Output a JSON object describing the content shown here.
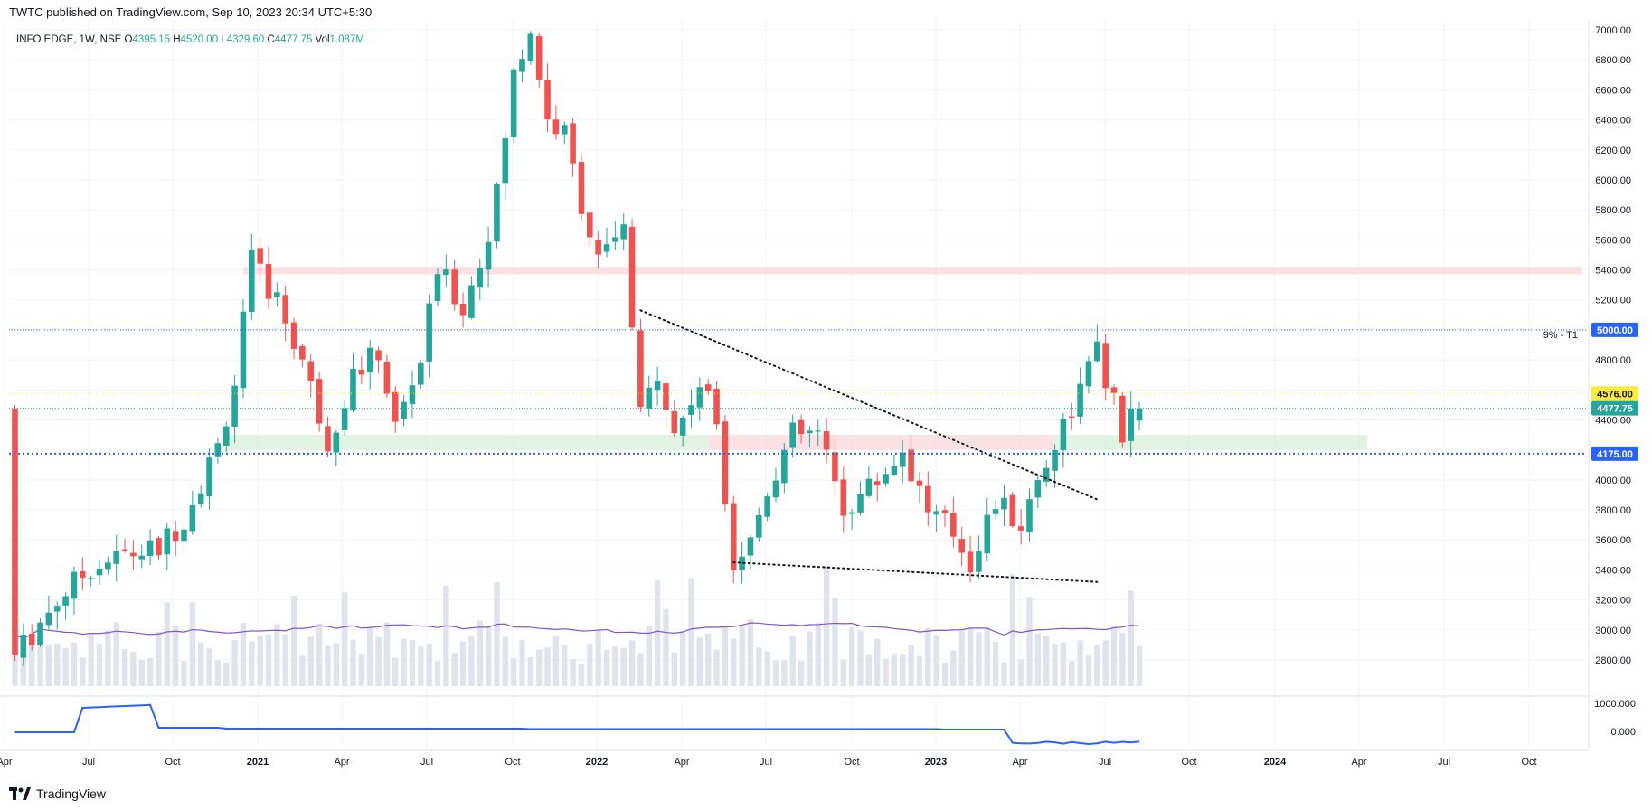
{
  "header": {
    "published": "TWTC published on TradingView.com, Sep 10, 2023 20:34 UTC+5:30"
  },
  "legend": {
    "symbol": "INFO EDGE, 1W, NSE",
    "o_label": "O",
    "o": "4395.15",
    "h_label": "H",
    "h": "4520.00",
    "l_label": "L",
    "l": "4329.60",
    "c_label": "C",
    "c": "4477.75",
    "v_label": "Vol",
    "v": "1.087M"
  },
  "brand": {
    "name": "TradingView"
  },
  "colors": {
    "up": "#26a69a",
    "down": "#ef5350",
    "volume": "#e0e3eb",
    "volume_ma": "#7e57c2",
    "indicator": "#2962ff",
    "grid": "#f0f3fa",
    "axis_text": "#131722"
  },
  "chart_data": {
    "type": "candlestick",
    "interval": "1W",
    "ylim": [
      2750,
      7000
    ],
    "y_ticks": [
      "7000.00",
      "6800.00",
      "6600.00",
      "6400.00",
      "6200.00",
      "6000.00",
      "5800.00",
      "5600.00",
      "5400.00",
      "5200.00",
      "5000.00",
      "4800.00",
      "4600.00",
      "4400.00",
      "4200.00",
      "4000.00",
      "3800.00",
      "3600.00",
      "3400.00",
      "3200.00",
      "3000.00",
      "2800.00"
    ],
    "x_ticks": [
      "Apr",
      "Jul",
      "Oct",
      "2021",
      "Apr",
      "Jul",
      "Oct",
      "2022",
      "Apr",
      "Jul",
      "Oct",
      "2023",
      "Apr",
      "Jul",
      "Oct",
      "2024",
      "Apr",
      "Jul",
      "Oct"
    ],
    "price_labels": [
      {
        "text": "5000.00",
        "value": 5000,
        "color": "#2962ff"
      },
      {
        "text": "4576.00",
        "value": 4576,
        "color": "#ffeb3b"
      },
      {
        "text": "4477.75",
        "value": 4477.75,
        "color": "#26a69a"
      },
      {
        "text": "4175.00",
        "value": 4175,
        "color": "#2962ff"
      }
    ],
    "annotations": [
      {
        "text": "9% - T1",
        "value": 5000
      }
    ],
    "indicator_ticks": [
      "1000.000",
      "0.000"
    ],
    "anchors": [
      {
        "t": 0.5,
        "p": 2780
      },
      {
        "t": 2,
        "p": 2900
      },
      {
        "t": 6,
        "p": 3200
      },
      {
        "t": 10,
        "p": 3420
      },
      {
        "t": 14,
        "p": 3500
      },
      {
        "t": 18,
        "p": 3540
      },
      {
        "t": 21,
        "p": 3750
      },
      {
        "t": 25,
        "p": 4220
      },
      {
        "t": 27,
        "p": 4650
      },
      {
        "t": 29,
        "p": 5450
      },
      {
        "t": 32,
        "p": 5200
      },
      {
        "t": 35,
        "p": 4800
      },
      {
        "t": 38,
        "p": 4250
      },
      {
        "t": 41,
        "p": 4700
      },
      {
        "t": 44,
        "p": 4850
      },
      {
        "t": 46,
        "p": 4350
      },
      {
        "t": 49,
        "p": 4800
      },
      {
        "t": 51,
        "p": 5400
      },
      {
        "t": 54,
        "p": 5150
      },
      {
        "t": 56,
        "p": 5450
      },
      {
        "t": 58,
        "p": 5900
      },
      {
        "t": 60,
        "p": 6700
      },
      {
        "t": 62,
        "p": 7000
      },
      {
        "t": 64,
        "p": 6400
      },
      {
        "t": 66,
        "p": 6300
      },
      {
        "t": 68,
        "p": 5850
      },
      {
        "t": 70,
        "p": 5450
      },
      {
        "t": 73,
        "p": 5650
      },
      {
        "t": 75,
        "p": 4400
      },
      {
        "t": 77,
        "p": 4750
      },
      {
        "t": 79,
        "p": 4300
      },
      {
        "t": 82,
        "p": 4650
      },
      {
        "t": 84,
        "p": 4400
      },
      {
        "t": 86,
        "p": 3450
      },
      {
        "t": 88,
        "p": 3600
      },
      {
        "t": 90,
        "p": 3950
      },
      {
        "t": 93,
        "p": 4300
      },
      {
        "t": 96,
        "p": 4300
      },
      {
        "t": 99,
        "p": 3800
      },
      {
        "t": 103,
        "p": 4000
      },
      {
        "t": 106,
        "p": 4200
      },
      {
        "t": 109,
        "p": 3800
      },
      {
        "t": 112,
        "p": 3650
      },
      {
        "t": 114,
        "p": 3450
      },
      {
        "t": 117,
        "p": 3850
      },
      {
        "t": 120,
        "p": 3700
      },
      {
        "t": 122,
        "p": 4000
      },
      {
        "t": 124,
        "p": 4250
      },
      {
        "t": 127,
        "p": 4600
      },
      {
        "t": 129,
        "p": 4850
      },
      {
        "t": 131,
        "p": 4500
      },
      {
        "t": 132,
        "p": 4230
      },
      {
        "t": 133,
        "p": 4477
      }
    ],
    "zones": [
      {
        "from_t": 27,
        "to_t": 188,
        "low": 5370,
        "high": 5420,
        "color": "#f8d7da"
      },
      {
        "from_t": 25,
        "to_t": 82,
        "low": 4200,
        "high": 4300,
        "color": "#d7efd7"
      },
      {
        "from_t": 82,
        "to_t": 123,
        "low": 4200,
        "high": 4300,
        "color": "#f8d7da"
      },
      {
        "from_t": 123,
        "to_t": 160,
        "low": 4200,
        "high": 4300,
        "color": "#d7efd7"
      }
    ],
    "trendlines": [
      {
        "t1": 74,
        "p1": 5130,
        "t2": 128,
        "p2": 3870
      },
      {
        "t1": 85,
        "p1": 3450,
        "t2": 128,
        "p2": 3320
      }
    ],
    "hlines": [
      {
        "value": 5000,
        "color": "#2962ff",
        "style": "dotted"
      },
      {
        "value": 4576,
        "color": "#ffeb3b",
        "style": "dotted"
      },
      {
        "value": 4477.75,
        "color": "#26a69a",
        "style": "dotted"
      },
      {
        "value": 4175,
        "color": "#2962ff",
        "style": "dashed"
      }
    ]
  }
}
